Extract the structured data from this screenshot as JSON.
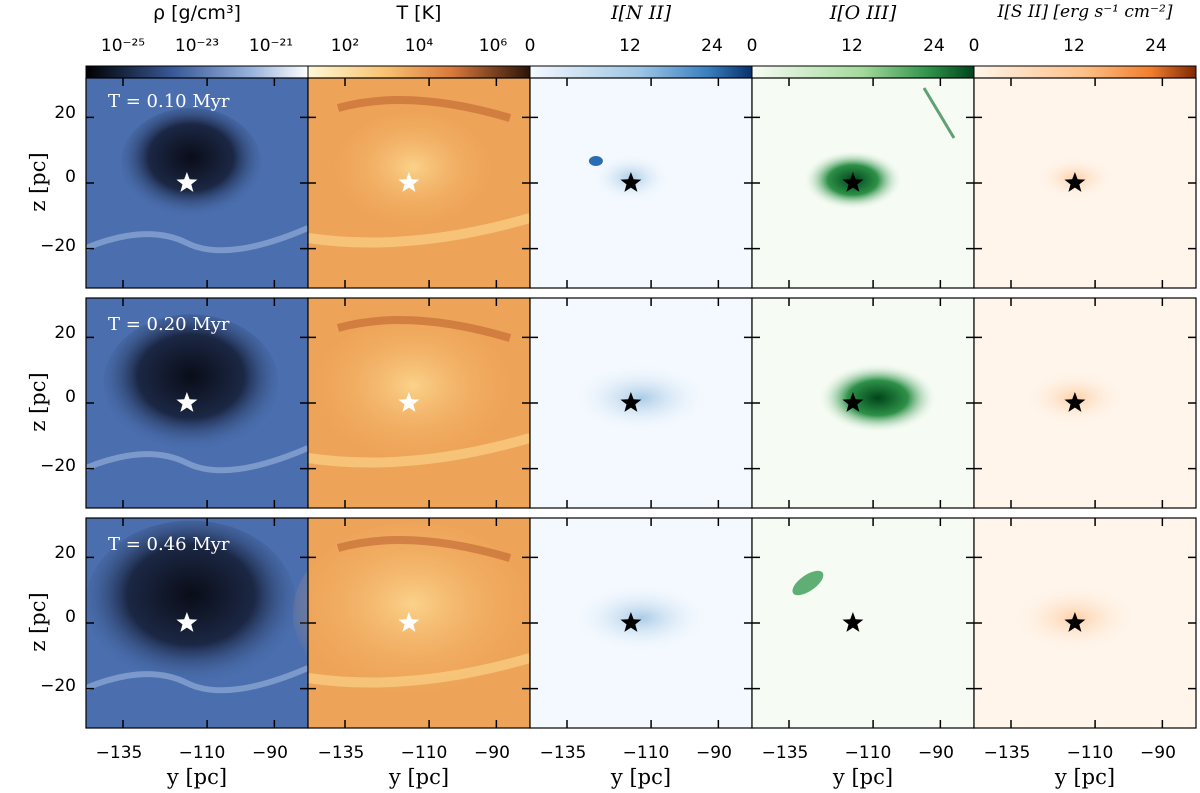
{
  "chart_data": {
    "type": "heatmap",
    "columns": [
      {
        "title": "ρ [g/cm³]",
        "colormap": "Blues_r",
        "cbar_ticks": [
          "10⁻²⁵",
          "10⁻²³",
          "10⁻²¹"
        ],
        "cbar_scale": "log",
        "cbar_colors": [
          "#000000",
          "#3a5a9a",
          "#7a9ad0",
          "#ffffff"
        ]
      },
      {
        "title": "T [K]",
        "colormap": "YlOrBr",
        "cbar_ticks": [
          "10²",
          "10⁴",
          "10⁶"
        ],
        "cbar_scale": "log",
        "cbar_colors": [
          "#fff9d6",
          "#f4b45a",
          "#d9783c",
          "#2a1408"
        ]
      },
      {
        "title": "I[N II]",
        "colormap": "Blues",
        "cbar_ticks": [
          "0",
          "12",
          "24"
        ],
        "cbar_scale": "linear",
        "cbar_colors": [
          "#f4f9ff",
          "#a9cbe6",
          "#3a7fc0",
          "#08306b"
        ]
      },
      {
        "title": "I[O III]",
        "colormap": "Greens",
        "cbar_ticks": [
          "0",
          "12",
          "24"
        ],
        "cbar_scale": "linear",
        "cbar_colors": [
          "#f6fcf4",
          "#a3d99b",
          "#2e9148",
          "#00441b"
        ]
      },
      {
        "title": "I[S II] [erg s⁻¹ cm⁻²]",
        "colormap": "Oranges",
        "cbar_ticks": [
          "0",
          "12",
          "24"
        ],
        "cbar_scale": "linear",
        "cbar_colors": [
          "#fff5eb",
          "#fdbf87",
          "#f07d2c",
          "#7f2704"
        ]
      }
    ],
    "rows": [
      {
        "time_label": "T = 0.10 Myr"
      },
      {
        "time_label": "T = 0.20 Myr"
      },
      {
        "time_label": "T = 0.46 Myr"
      }
    ],
    "xlabel": "y [pc]",
    "ylabel": "z [pc]",
    "x_ticks": [
      -135,
      -110,
      -90
    ],
    "x_tick_labels": [
      "−135",
      "−110",
      "−90"
    ],
    "y_ticks": [
      20,
      0,
      -20
    ],
    "y_tick_labels": [
      "20",
      "0",
      "−20"
    ],
    "xlim": [
      -146,
      -80
    ],
    "ylim": [
      -32,
      32
    ],
    "source_position": {
      "y": -116,
      "z": 0
    },
    "grid": false
  },
  "colors": {
    "density_bg": "#4a6eae",
    "temp_bg": "#eea458",
    "nii_bg": "#f4f9ff",
    "oiii_bg": "#f6fcf4",
    "sii_bg": "#fff5eb"
  }
}
